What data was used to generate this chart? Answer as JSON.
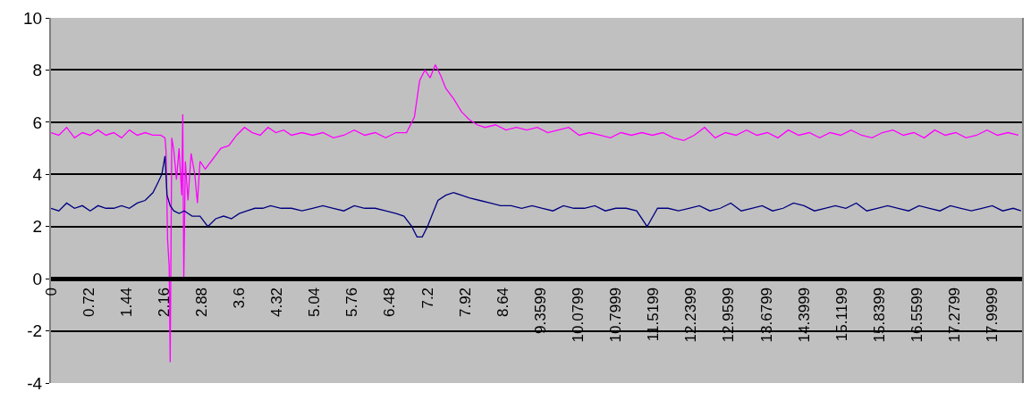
{
  "chart_data": {
    "type": "line",
    "xlim": [
      0,
      18.57
    ],
    "xticks": [
      0,
      0.72,
      1.44,
      2.16,
      2.88,
      3.6,
      4.32,
      5.04,
      5.76,
      6.48,
      7.2,
      7.92,
      8.64,
      9.3599,
      10.0799,
      10.7999,
      11.5199,
      12.2399,
      12.9599,
      13.6799,
      14.3999,
      15.1199,
      15.8399,
      16.5599,
      17.2799,
      17.9999
    ],
    "ylim": [
      -4,
      10
    ],
    "yticks": [
      -4,
      -2,
      0,
      2,
      4,
      6,
      8,
      10
    ],
    "grid": "y",
    "marker": "none",
    "line_style": "solid",
    "series": [
      {
        "color": "#ff00ff",
        "x": [
          0,
          0.15,
          0.3,
          0.45,
          0.6,
          0.75,
          0.9,
          1.05,
          1.2,
          1.35,
          1.5,
          1.65,
          1.8,
          1.95,
          2.1,
          2.18,
          2.2,
          2.23,
          2.26,
          2.28,
          2.31,
          2.35,
          2.4,
          2.45,
          2.5,
          2.52,
          2.54,
          2.57,
          2.62,
          2.68,
          2.75,
          2.8,
          2.85,
          2.95,
          3.1,
          3.25,
          3.4,
          3.55,
          3.7,
          3.85,
          4.0,
          4.15,
          4.3,
          4.45,
          4.6,
          4.8,
          5.0,
          5.2,
          5.4,
          5.6,
          5.8,
          6.0,
          6.2,
          6.4,
          6.6,
          6.8,
          6.95,
          7.05,
          7.15,
          7.25,
          7.35,
          7.45,
          7.55,
          7.7,
          7.85,
          8.0,
          8.15,
          8.3,
          8.5,
          8.7,
          8.9,
          9.1,
          9.3,
          9.5,
          9.7,
          9.9,
          10.1,
          10.3,
          10.5,
          10.7,
          10.9,
          11.1,
          11.3,
          11.5,
          11.7,
          11.9,
          12.1,
          12.3,
          12.5,
          12.7,
          12.9,
          13.1,
          13.3,
          13.5,
          13.7,
          13.9,
          14.1,
          14.3,
          14.5,
          14.7,
          14.9,
          15.1,
          15.3,
          15.5,
          15.7,
          15.9,
          16.1,
          16.3,
          16.5,
          16.7,
          16.9,
          17.1,
          17.3,
          17.5,
          17.7,
          17.9,
          18.1,
          18.3,
          18.5
        ],
        "values": [
          5.6,
          5.5,
          5.8,
          5.4,
          5.6,
          5.5,
          5.7,
          5.5,
          5.6,
          5.4,
          5.7,
          5.5,
          5.6,
          5.5,
          5.5,
          5.4,
          4.9,
          1.5,
          0.5,
          -3.2,
          5.4,
          4.9,
          3.8,
          5.0,
          3.2,
          6.3,
          0,
          4.5,
          3.0,
          4.8,
          4.0,
          2.9,
          4.5,
          4.2,
          4.6,
          5.0,
          5.1,
          5.5,
          5.8,
          5.6,
          5.5,
          5.8,
          5.6,
          5.7,
          5.5,
          5.6,
          5.5,
          5.6,
          5.4,
          5.5,
          5.7,
          5.5,
          5.6,
          5.4,
          5.6,
          5.6,
          6.2,
          7.6,
          8.0,
          7.7,
          8.2,
          7.8,
          7.3,
          6.9,
          6.4,
          6.1,
          5.9,
          5.8,
          5.9,
          5.7,
          5.8,
          5.7,
          5.8,
          5.6,
          5.7,
          5.8,
          5.5,
          5.6,
          5.5,
          5.4,
          5.6,
          5.5,
          5.6,
          5.5,
          5.6,
          5.4,
          5.3,
          5.5,
          5.8,
          5.4,
          5.6,
          5.5,
          5.7,
          5.5,
          5.6,
          5.4,
          5.7,
          5.5,
          5.6,
          5.4,
          5.6,
          5.5,
          5.7,
          5.5,
          5.4,
          5.6,
          5.7,
          5.5,
          5.6,
          5.4,
          5.7,
          5.5,
          5.6,
          5.4,
          5.5,
          5.7,
          5.5,
          5.6,
          5.5
        ]
      },
      {
        "color": "#000080",
        "x": [
          0,
          0.15,
          0.3,
          0.45,
          0.6,
          0.75,
          0.9,
          1.05,
          1.2,
          1.35,
          1.5,
          1.65,
          1.8,
          1.95,
          2.05,
          2.12,
          2.18,
          2.22,
          2.28,
          2.35,
          2.45,
          2.55,
          2.7,
          2.85,
          3.0,
          3.15,
          3.3,
          3.45,
          3.6,
          3.75,
          3.9,
          4.05,
          4.2,
          4.4,
          4.6,
          4.8,
          5.0,
          5.2,
          5.4,
          5.6,
          5.8,
          6.0,
          6.2,
          6.4,
          6.6,
          6.75,
          6.9,
          7.0,
          7.1,
          7.2,
          7.3,
          7.4,
          7.55,
          7.7,
          7.85,
          8.0,
          8.2,
          8.4,
          8.6,
          8.8,
          9.0,
          9.2,
          9.4,
          9.6,
          9.8,
          10.0,
          10.2,
          10.4,
          10.6,
          10.8,
          11.0,
          11.2,
          11.4,
          11.6,
          11.8,
          12.0,
          12.2,
          12.4,
          12.6,
          12.8,
          13.0,
          13.2,
          13.4,
          13.6,
          13.8,
          14.0,
          14.2,
          14.4,
          14.6,
          14.8,
          15.0,
          15.2,
          15.4,
          15.6,
          15.8,
          16.0,
          16.2,
          16.4,
          16.6,
          16.8,
          17.0,
          17.2,
          17.4,
          17.6,
          17.8,
          18.0,
          18.2,
          18.4,
          18.55
        ],
        "values": [
          2.7,
          2.6,
          2.9,
          2.7,
          2.8,
          2.6,
          2.8,
          2.7,
          2.7,
          2.8,
          2.7,
          2.9,
          3.0,
          3.3,
          3.7,
          4.0,
          4.7,
          3.2,
          2.8,
          2.6,
          2.5,
          2.6,
          2.4,
          2.4,
          2.0,
          2.3,
          2.4,
          2.3,
          2.5,
          2.6,
          2.7,
          2.7,
          2.8,
          2.7,
          2.7,
          2.6,
          2.7,
          2.8,
          2.7,
          2.6,
          2.8,
          2.7,
          2.7,
          2.6,
          2.5,
          2.4,
          2.0,
          1.6,
          1.6,
          2.0,
          2.5,
          3.0,
          3.2,
          3.3,
          3.2,
          3.1,
          3.0,
          2.9,
          2.8,
          2.8,
          2.7,
          2.8,
          2.7,
          2.6,
          2.8,
          2.7,
          2.7,
          2.8,
          2.6,
          2.7,
          2.7,
          2.6,
          2.0,
          2.7,
          2.7,
          2.6,
          2.7,
          2.8,
          2.6,
          2.7,
          2.9,
          2.6,
          2.7,
          2.8,
          2.6,
          2.7,
          2.9,
          2.8,
          2.6,
          2.7,
          2.8,
          2.7,
          2.9,
          2.6,
          2.7,
          2.8,
          2.7,
          2.6,
          2.8,
          2.7,
          2.6,
          2.8,
          2.7,
          2.6,
          2.7,
          2.8,
          2.6,
          2.7,
          2.6
        ]
      }
    ]
  }
}
